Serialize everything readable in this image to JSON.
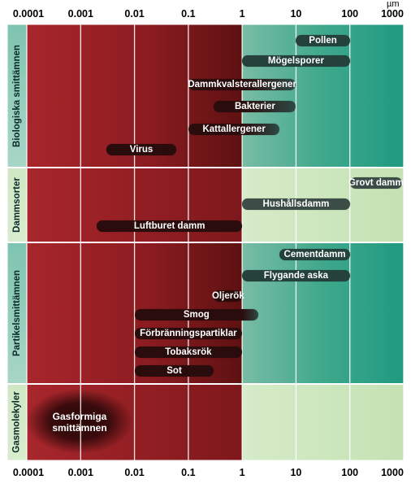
{
  "unit": "µm",
  "ticks": [
    "0.0001",
    "0.001",
    "0.01",
    "0.1",
    "1",
    "10",
    "100",
    "1000"
  ],
  "groups": [
    {
      "label": "Biologiska smittämnen"
    },
    {
      "label": "Dammsorter"
    },
    {
      "label": "Partikelsmittämnen"
    },
    {
      "label": "Gasmolekyler"
    }
  ],
  "chart_data": {
    "type": "range-bar",
    "x_scale": "log",
    "x_range": [
      0.0001,
      1000
    ],
    "x_unit": "µm",
    "categories": [
      {
        "group": "Biologiska smittämnen",
        "items": [
          {
            "label": "Pollen",
            "from": 10,
            "to": 100
          },
          {
            "label": "Mögelsporer",
            "from": 1,
            "to": 100
          },
          {
            "label": "Dammkvalsterallergener",
            "from": 0.1,
            "to": 10
          },
          {
            "label": "Bakterier",
            "from": 0.3,
            "to": 10
          },
          {
            "label": "Kattallergener",
            "from": 0.1,
            "to": 5
          },
          {
            "label": "Virus",
            "from": 0.003,
            "to": 0.06
          }
        ]
      },
      {
        "group": "Dammsorter",
        "items": [
          {
            "label": "Grovt damm",
            "from": 100,
            "to": 1000
          },
          {
            "label": "Hushållsdamm",
            "from": 1,
            "to": 100
          },
          {
            "label": "Luftburet damm",
            "from": 0.002,
            "to": 1
          }
        ]
      },
      {
        "group": "Partikelsmittämnen",
        "items": [
          {
            "label": "Cementdamm",
            "from": 5,
            "to": 100
          },
          {
            "label": "Flygande aska",
            "from": 1,
            "to": 100
          },
          {
            "label": "Oljerök",
            "from": 0.3,
            "to": 1
          },
          {
            "label": "Smog",
            "from": 0.01,
            "to": 2
          },
          {
            "label": "Förbränningspartiklar",
            "from": 0.01,
            "to": 1
          },
          {
            "label": "Tobaksrök",
            "from": 0.01,
            "to": 1
          },
          {
            "label": "Sot",
            "from": 0.01,
            "to": 0.3
          }
        ]
      },
      {
        "group": "Gasmolekyler",
        "items": [
          {
            "label": "Gasformiga smittämnen",
            "from": 0.0001,
            "to": 0.01
          }
        ]
      }
    ]
  }
}
